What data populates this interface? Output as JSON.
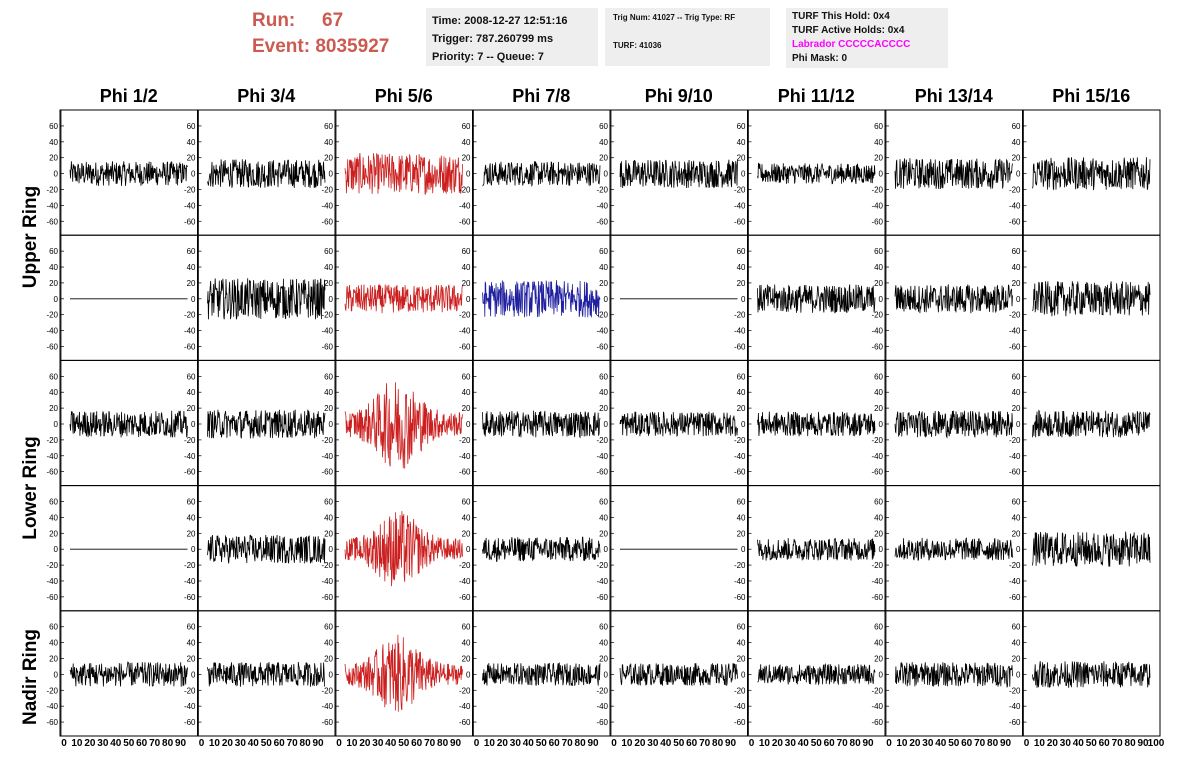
{
  "header": {
    "run_label": "Run:",
    "run_value": "67",
    "event_label": "Event:",
    "event_value": "8035927",
    "time": "Time: 2008-12-27 12:51:16",
    "trigger": "Trigger: 787.260799 ms",
    "priority": "Priority: 7 -- Queue: 7",
    "trig_num": "Trig Num: 41027 -- Trig Type: RF",
    "turf": "TURF: 41036",
    "turf_this_hold": "TURF This Hold: 0x4",
    "turf_active_holds": "TURF Active Holds: 0x4",
    "labrador": "Labrador CCCCCACCCC",
    "phi_mask": "Phi Mask: 0"
  },
  "colors": {
    "run_text": "#cc5a50",
    "labrador_text": "#ff00ff",
    "trace_default": "#000000",
    "trace_red": "#cc2020",
    "trace_blue": "#2020a0"
  },
  "row_labels": {
    "upper": "Upper Ring",
    "lower": "Lower Ring",
    "nadir": "Nadir Ring"
  },
  "chart_data": {
    "type": "line",
    "columns": [
      "Phi 1/2",
      "Phi 3/4",
      "Phi 5/6",
      "Phi 7/8",
      "Phi 9/10",
      "Phi 11/12",
      "Phi 13/14",
      "Phi 15/16"
    ],
    "rows": 5,
    "ylim": [
      -70,
      70
    ],
    "xlim": [
      0,
      100
    ],
    "ytick_labels": [
      "60",
      "40",
      "20",
      "0",
      "-20",
      "-40",
      "-60"
    ],
    "xtick_labels": [
      "0",
      "10",
      "20",
      "30",
      "40",
      "50",
      "60",
      "70",
      "80",
      "90",
      "100"
    ],
    "grid": false,
    "panels": [
      [
        {
          "color": "black",
          "amp": 12
        },
        {
          "color": "black",
          "amp": 14
        },
        {
          "color": "red",
          "amp": 20
        },
        {
          "color": "black",
          "amp": 12
        },
        {
          "color": "black",
          "amp": 14
        },
        {
          "color": "black",
          "amp": 10
        },
        {
          "color": "black",
          "amp": 15
        },
        {
          "color": "black",
          "amp": 16
        }
      ],
      [
        {
          "color": "black",
          "amp": 0
        },
        {
          "color": "black",
          "amp": 20
        },
        {
          "color": "red",
          "amp": 14
        },
        {
          "color": "blue",
          "amp": 18
        },
        {
          "color": "black",
          "amp": 0
        },
        {
          "color": "black",
          "amp": 14
        },
        {
          "color": "black",
          "amp": 14
        },
        {
          "color": "black",
          "amp": 17
        }
      ],
      [
        {
          "color": "black",
          "amp": 13
        },
        {
          "color": "black",
          "amp": 14
        },
        {
          "color": "red",
          "amp": 26,
          "burst": true
        },
        {
          "color": "black",
          "amp": 13
        },
        {
          "color": "black",
          "amp": 12
        },
        {
          "color": "black",
          "amp": 12
        },
        {
          "color": "black",
          "amp": 13
        },
        {
          "color": "black",
          "amp": 13
        }
      ],
      [
        {
          "color": "black",
          "amp": 0
        },
        {
          "color": "black",
          "amp": 14
        },
        {
          "color": "red",
          "amp": 22,
          "burst": true
        },
        {
          "color": "black",
          "amp": 12
        },
        {
          "color": "black",
          "amp": 0
        },
        {
          "color": "black",
          "amp": 11
        },
        {
          "color": "black",
          "amp": 11
        },
        {
          "color": "black",
          "amp": 17
        }
      ],
      [
        {
          "color": "black",
          "amp": 12
        },
        {
          "color": "black",
          "amp": 12
        },
        {
          "color": "red",
          "amp": 22,
          "burst": true
        },
        {
          "color": "black",
          "amp": 11
        },
        {
          "color": "black",
          "amp": 11
        },
        {
          "color": "black",
          "amp": 10
        },
        {
          "color": "black",
          "amp": 12
        },
        {
          "color": "black",
          "amp": 13
        }
      ]
    ]
  }
}
